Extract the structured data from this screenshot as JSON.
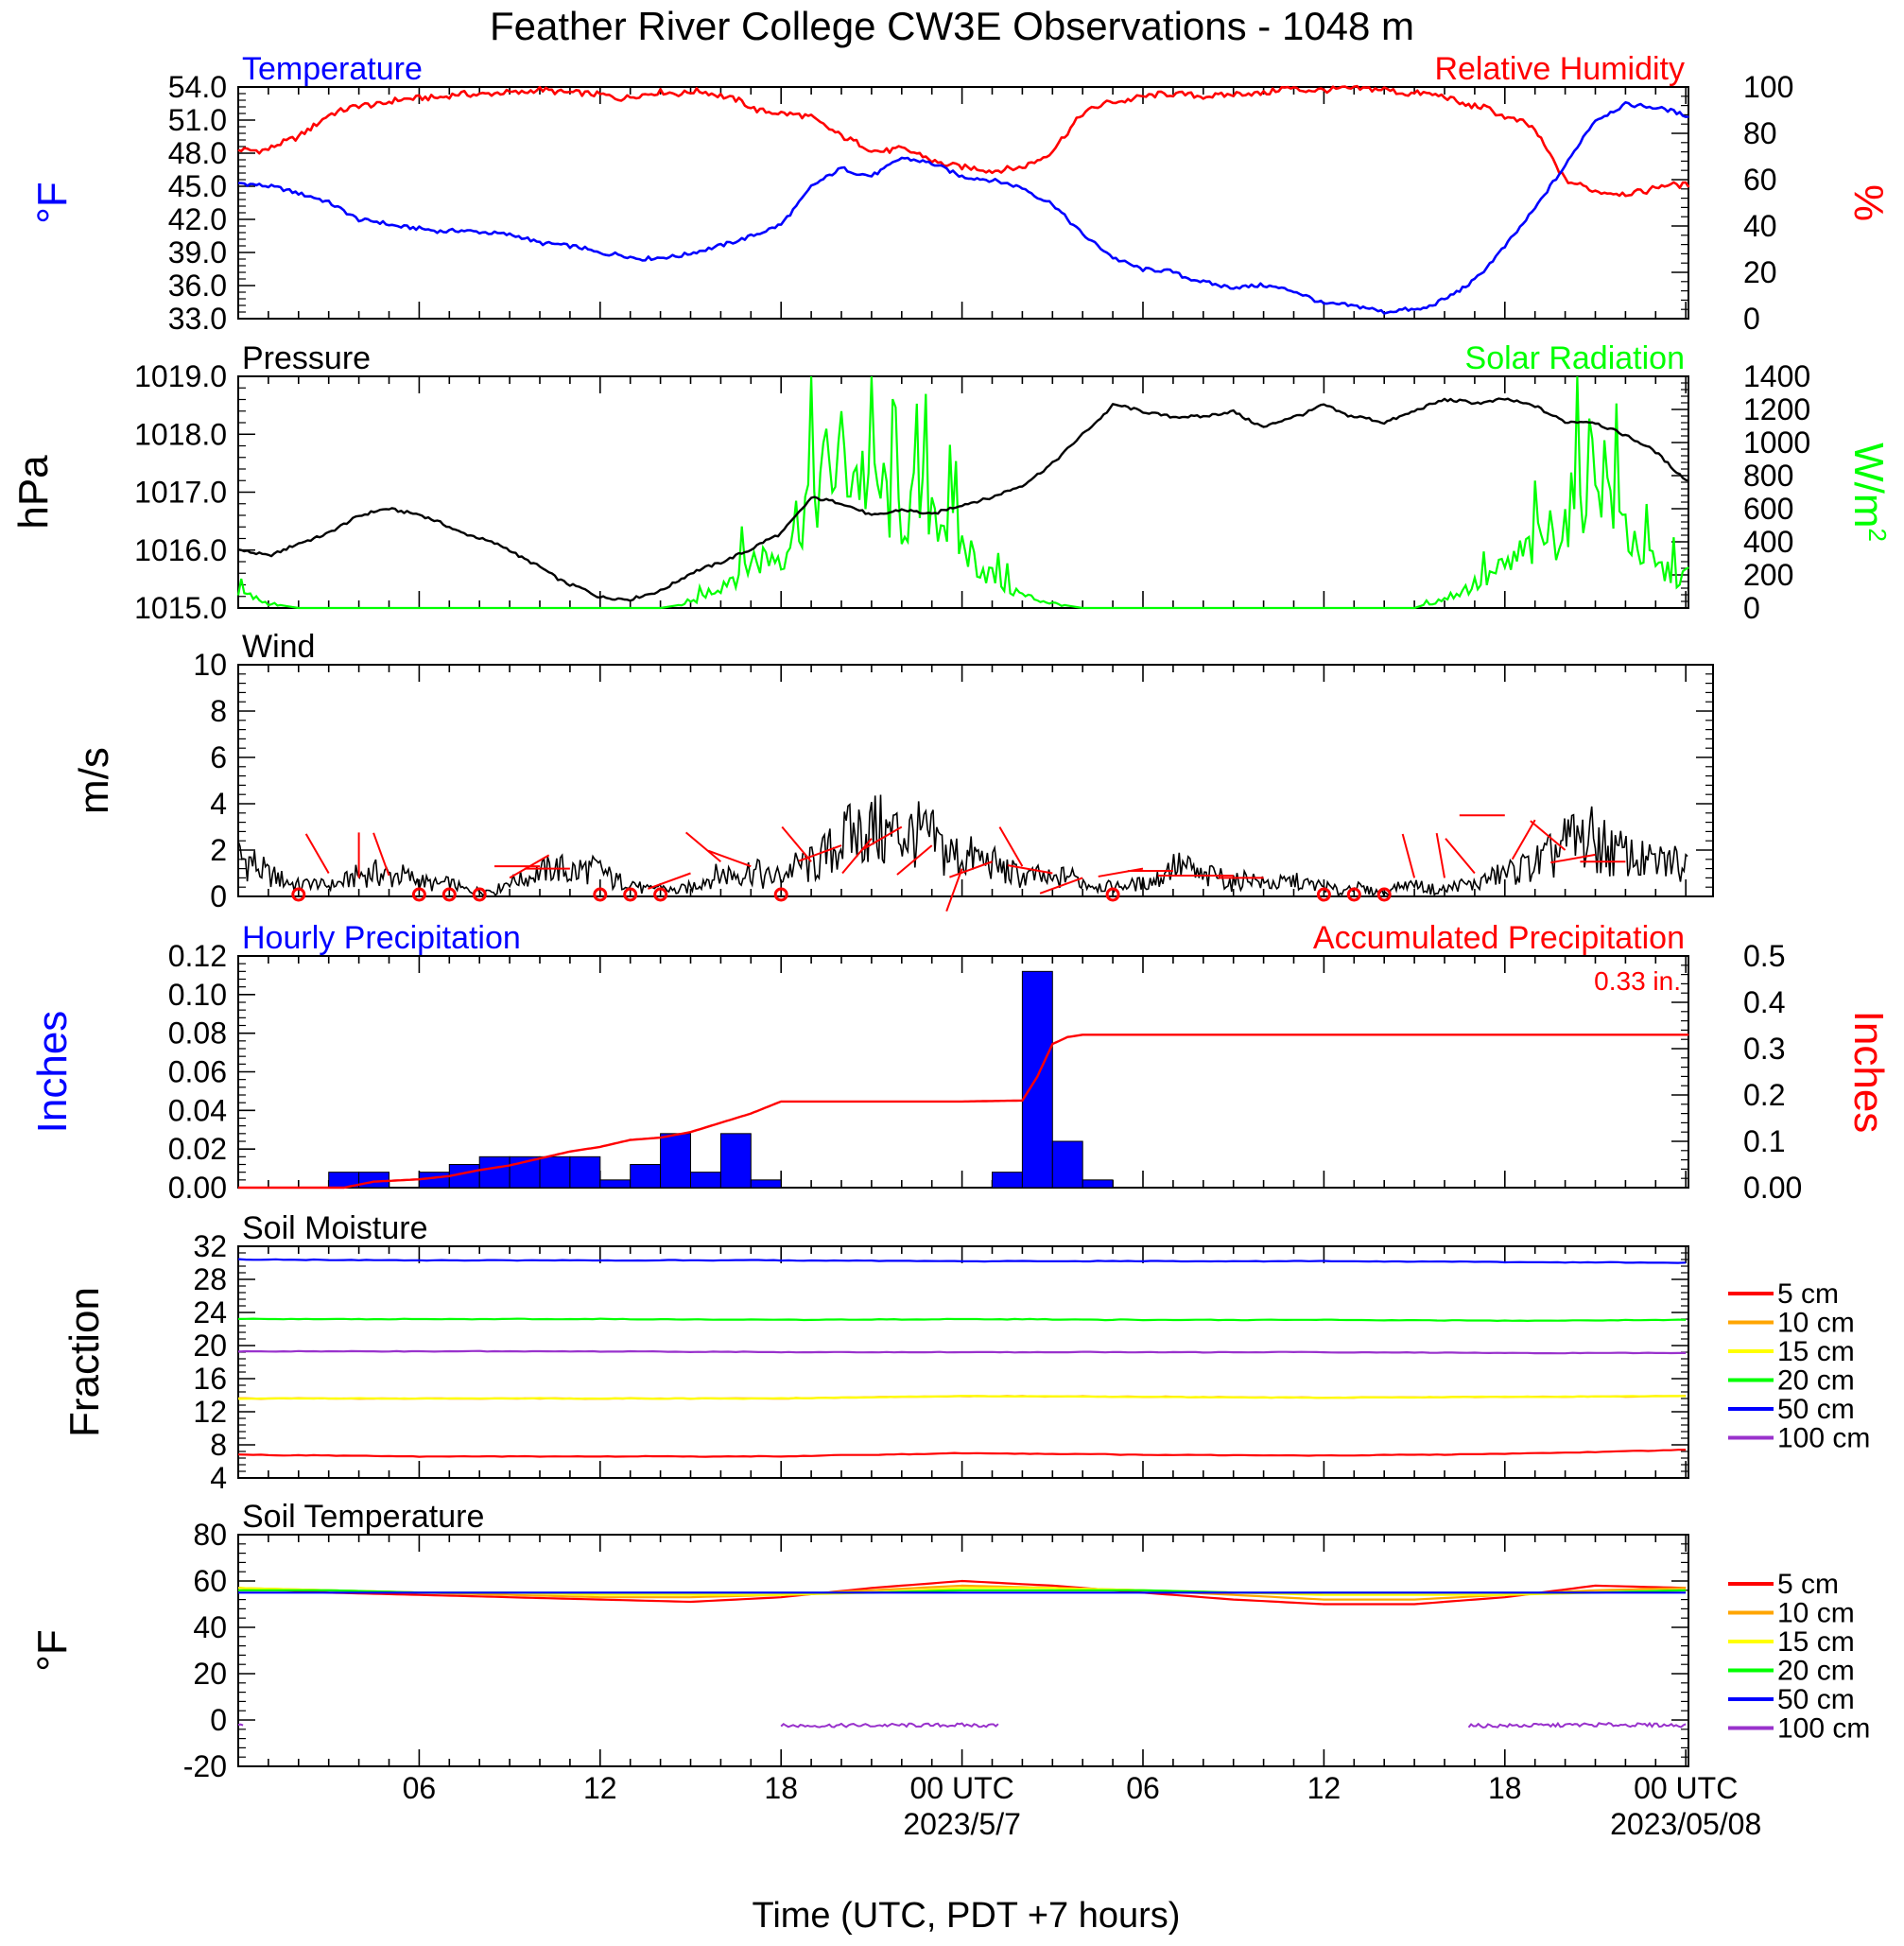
{
  "page": {
    "title": "Feather River College CW3E Observations - 1048 m",
    "x_axis": {
      "ticks": [
        "06",
        "12",
        "18",
        "00 UTC",
        "06",
        "12",
        "18",
        "00 UTC"
      ],
      "dates": [
        "2023/5/7",
        "2023/05/08"
      ],
      "label": "Time (UTC, PDT +7 hours)"
    }
  },
  "colors": {
    "temperature": "#0000ff",
    "humidity": "#ff0000",
    "pressure": "#000000",
    "solar": "#00ff00",
    "wind": "#000000",
    "barb": "#ff0000",
    "hourly_precip": "#0000ff",
    "accum_precip": "#ff0000"
  },
  "chart_data": [
    {
      "type": "line",
      "panel": "temperature-humidity",
      "title_left": "Temperature",
      "title_right": "Relative Humidity",
      "ylabel_left": "°F",
      "ylabel_right": "%",
      "ylim_left": [
        33,
        54
      ],
      "ylim_right": [
        0,
        100
      ],
      "yticks_left": [
        "54.0",
        "51.0",
        "48.0",
        "45.0",
        "42.0",
        "39.0",
        "36.0",
        "33.0"
      ],
      "yticks_right": [
        "100",
        "80",
        "60",
        "40",
        "20",
        "0"
      ],
      "x_hours": [
        0,
        1,
        2,
        3,
        4,
        5,
        6,
        7,
        8,
        9,
        10,
        11,
        12,
        13,
        14,
        15,
        16,
        17,
        18,
        19,
        20,
        21,
        22,
        23,
        24,
        25,
        26,
        27,
        28,
        29,
        30,
        31,
        32,
        33,
        34,
        35,
        36,
        37,
        38,
        39,
        40,
        41,
        42,
        43,
        44,
        45,
        46,
        47,
        48
      ],
      "series": [
        {
          "name": "Temperature",
          "axis": "left",
          "values": [
            45.3,
            45.0,
            44.5,
            43.5,
            42.0,
            41.5,
            41.2,
            40.9,
            40.8,
            40.5,
            40.0,
            39.5,
            39.0,
            38.6,
            38.4,
            39.0,
            39.6,
            40.5,
            41.5,
            45.0,
            46.5,
            46.0,
            47.5,
            47.0,
            46.0,
            45.5,
            44.8,
            43.5,
            40.5,
            38.5,
            37.5,
            37.3,
            36.2,
            35.9,
            36.0,
            35.5,
            34.4,
            34.0,
            33.7,
            33.8,
            34.6,
            36.5,
            39.5,
            43.0,
            47.0,
            51.0,
            52.5,
            52.0,
            51.5
          ]
        },
        {
          "name": "Relative Humidity",
          "axis": "right",
          "values": [
            73,
            73,
            78,
            88,
            92,
            94,
            95,
            96,
            97,
            98,
            98,
            97,
            96,
            96,
            97,
            98,
            97,
            91,
            89,
            87,
            79,
            73,
            73,
            68,
            66,
            63,
            65,
            73,
            88,
            94,
            96,
            96,
            96,
            97,
            98,
            99,
            99,
            99,
            99,
            97,
            95,
            92,
            88,
            81,
            60,
            55,
            54,
            57,
            58
          ]
        }
      ]
    },
    {
      "type": "line",
      "panel": "pressure-solar",
      "title_left": "Pressure",
      "title_right": "Solar Radiation",
      "ylabel_left": "hPa",
      "ylabel_right": "W/m",
      "ylabel_right_sup": "2",
      "ylim_left": [
        1015,
        1019
      ],
      "ylim_right": [
        0,
        1400
      ],
      "yticks_left": [
        "1019.0",
        "1018.0",
        "1017.0",
        "1016.0",
        "1015.0"
      ],
      "yticks_right": [
        "1400",
        "1200",
        "1000",
        "800",
        "600",
        "400",
        "200",
        "0"
      ],
      "x_hours": [
        0,
        1,
        2,
        3,
        4,
        5,
        6,
        7,
        8,
        9,
        10,
        11,
        12,
        13,
        14,
        15,
        16,
        17,
        18,
        19,
        20,
        21,
        22,
        23,
        24,
        25,
        26,
        27,
        28,
        29,
        30,
        31,
        32,
        33,
        34,
        35,
        36,
        37,
        38,
        39,
        40,
        41,
        42,
        43,
        44,
        45,
        46,
        47,
        48
      ],
      "series": [
        {
          "name": "Pressure",
          "axis": "left",
          "values": [
            1016.0,
            1015.9,
            1016.1,
            1016.3,
            1016.6,
            1016.7,
            1016.6,
            1016.4,
            1016.2,
            1016.0,
            1015.7,
            1015.4,
            1015.2,
            1015.15,
            1015.3,
            1015.6,
            1015.8,
            1016.0,
            1016.3,
            1016.9,
            1016.8,
            1016.6,
            1016.7,
            1016.6,
            1016.8,
            1016.9,
            1017.1,
            1017.5,
            1018.0,
            1018.5,
            1018.4,
            1018.3,
            1018.3,
            1018.4,
            1018.1,
            1018.3,
            1018.5,
            1018.3,
            1018.2,
            1018.4,
            1018.6,
            1018.55,
            1018.6,
            1018.5,
            1018.2,
            1018.2,
            1018.0,
            1017.7,
            1017.2
          ]
        },
        {
          "name": "Solar Radiation",
          "axis": "right",
          "values": [
            100,
            30,
            0,
            0,
            0,
            0,
            0,
            0,
            0,
            0,
            0,
            0,
            0,
            0,
            0,
            30,
            150,
            300,
            350,
            750,
            950,
            800,
            600,
            700,
            400,
            200,
            80,
            30,
            0,
            0,
            0,
            0,
            0,
            0,
            0,
            0,
            0,
            0,
            0,
            0,
            60,
            150,
            250,
            400,
            550,
            1000,
            500,
            250,
            200
          ]
        }
      ]
    },
    {
      "type": "line",
      "panel": "wind",
      "title_left": "Wind",
      "ylabel_left": "m/s",
      "ylim_left": [
        0,
        10
      ],
      "yticks_left": [
        "10",
        "8",
        "6",
        "4",
        "2",
        "0"
      ],
      "x_hours": [
        0,
        1,
        2,
        3,
        4,
        5,
        6,
        7,
        8,
        9,
        10,
        11,
        12,
        13,
        14,
        15,
        16,
        17,
        18,
        19,
        20,
        21,
        22,
        23,
        24,
        25,
        26,
        27,
        28,
        29,
        30,
        31,
        32,
        33,
        34,
        35,
        36,
        37,
        38,
        39,
        40,
        41,
        42,
        43,
        44,
        45,
        46,
        47,
        48
      ],
      "series": [
        {
          "name": "Wind",
          "axis": "left",
          "values": [
            2.0,
            1.0,
            0.6,
            0.4,
            1.0,
            1.2,
            0.7,
            0.5,
            0.3,
            0.5,
            1.0,
            1.4,
            1.1,
            0.6,
            0.3,
            0.5,
            1.1,
            1.2,
            0.9,
            1.6,
            2.5,
            3.2,
            3.0,
            2.6,
            1.9,
            1.4,
            1.0,
            0.9,
            0.8,
            0.4,
            0.6,
            1.3,
            1.0,
            0.8,
            0.6,
            0.7,
            0.5,
            0.4,
            0.3,
            0.4,
            0.5,
            0.6,
            1.0,
            1.5,
            2.5,
            2.8,
            1.8,
            1.5,
            1.6
          ]
        }
      ],
      "calm_hours": [
        2,
        6,
        7,
        8,
        12,
        13,
        14,
        18,
        29,
        36,
        37,
        38
      ],
      "barbs": [
        {
          "h": 3,
          "speed": 1.0,
          "dir": 330
        },
        {
          "h": 4,
          "speed": 0.8,
          "dir": 0
        },
        {
          "h": 5,
          "speed": 0.9,
          "dir": 340
        },
        {
          "h": 9,
          "speed": 0.8,
          "dir": 60
        },
        {
          "h": 10,
          "speed": 1.3,
          "dir": 270
        },
        {
          "h": 11,
          "speed": 1.2,
          "dir": 270
        },
        {
          "h": 15,
          "speed": 1.0,
          "dir": 250
        },
        {
          "h": 16,
          "speed": 1.5,
          "dir": 310
        },
        {
          "h": 17,
          "speed": 1.3,
          "dir": 290
        },
        {
          "h": 19,
          "speed": 1.5,
          "dir": 320
        },
        {
          "h": 20,
          "speed": 2.2,
          "dir": 250
        },
        {
          "h": 21,
          "speed": 2.5,
          "dir": 220
        },
        {
          "h": 22,
          "speed": 3.0,
          "dir": 240
        },
        {
          "h": 23,
          "speed": 2.2,
          "dir": 230
        },
        {
          "h": 24,
          "speed": 1.2,
          "dir": 200
        },
        {
          "h": 25,
          "speed": 1.5,
          "dir": 250
        },
        {
          "h": 26,
          "speed": 1.3,
          "dir": 330
        },
        {
          "h": 27,
          "speed": 1.0,
          "dir": 280
        },
        {
          "h": 28,
          "speed": 0.8,
          "dir": 250
        },
        {
          "h": 30,
          "speed": 1.2,
          "dir": 260
        },
        {
          "h": 31,
          "speed": 1.1,
          "dir": 270
        },
        {
          "h": 32,
          "speed": 0.9,
          "dir": 270
        },
        {
          "h": 33,
          "speed": 0.9,
          "dir": 270
        },
        {
          "h": 34,
          "speed": 0.8,
          "dir": 270
        },
        {
          "h": 39,
          "speed": 0.8,
          "dir": 345
        },
        {
          "h": 40,
          "speed": 0.8,
          "dir": 350
        },
        {
          "h": 41,
          "speed": 1.0,
          "dir": 320
        },
        {
          "h": 42,
          "speed": 3.5,
          "dir": 270
        },
        {
          "h": 43,
          "speed": 3.3,
          "dir": 210
        },
        {
          "h": 44,
          "speed": 2.0,
          "dir": 310
        },
        {
          "h": 45,
          "speed": 1.8,
          "dir": 260
        },
        {
          "h": 46,
          "speed": 1.5,
          "dir": 270
        }
      ]
    },
    {
      "type": "bar",
      "panel": "precipitation",
      "title_left": "Hourly Precipitation",
      "title_right": "Accumulated Precipitation",
      "annotation": "0.33 in.",
      "ylabel_left": "Inches",
      "ylabel_right": "Inches",
      "ylim_left": [
        0,
        0.12
      ],
      "ylim_right": [
        0,
        0.5
      ],
      "yticks_left": [
        "0.12",
        "0.10",
        "0.08",
        "0.06",
        "0.04",
        "0.02",
        "0.00"
      ],
      "yticks_right": [
        "0.5",
        "0.4",
        "0.3",
        "0.2",
        "0.1",
        "0.00"
      ],
      "hours": [
        0,
        1,
        2,
        3,
        4,
        5,
        6,
        7,
        8,
        9,
        10,
        11,
        12,
        13,
        14,
        15,
        16,
        17,
        18,
        19,
        20,
        21,
        22,
        23,
        24,
        25,
        26,
        27,
        28,
        29,
        30,
        31,
        32,
        33,
        34,
        35,
        36,
        37,
        38,
        39,
        40,
        41,
        42,
        43,
        44,
        45,
        46,
        47
      ],
      "hourly": [
        0,
        0,
        0,
        0.008,
        0.008,
        0,
        0.008,
        0.012,
        0.016,
        0.016,
        0.016,
        0.016,
        0.004,
        0.012,
        0.028,
        0.008,
        0.028,
        0.004,
        0,
        0,
        0,
        0,
        0,
        0,
        0,
        0.008,
        0.112,
        0.024,
        0.004,
        0,
        0,
        0,
        0,
        0,
        0,
        0,
        0,
        0,
        0,
        0,
        0,
        0,
        0,
        0,
        0,
        0,
        0,
        0
      ],
      "accum_x": [
        0,
        3.5,
        4.5,
        6,
        7,
        8,
        9,
        10,
        11,
        12,
        13,
        14,
        15,
        16,
        17,
        18,
        20,
        22,
        24,
        26,
        26.5,
        27,
        27.5,
        28,
        29,
        32,
        36,
        40,
        44,
        48
      ],
      "accum": [
        0,
        0,
        0.013,
        0.018,
        0.025,
        0.038,
        0.048,
        0.063,
        0.078,
        0.088,
        0.103,
        0.108,
        0.12,
        0.14,
        0.16,
        0.186,
        0.186,
        0.186,
        0.186,
        0.188,
        0.24,
        0.31,
        0.325,
        0.33,
        0.33,
        0.33,
        0.33,
        0.33,
        0.33,
        0.33
      ]
    },
    {
      "type": "line",
      "panel": "soil-moisture",
      "title_left": "Soil Moisture",
      "ylabel_left": "Fraction",
      "ylim_left": [
        4,
        32
      ],
      "yticks_left": [
        "32",
        "28",
        "24",
        "20",
        "16",
        "12",
        "8",
        "4"
      ],
      "x_hours": [
        0,
        6,
        12,
        18,
        24,
        30,
        36,
        42,
        48
      ],
      "series": [
        {
          "name": "5 cm",
          "values": [
            6.8,
            6.6,
            6.6,
            6.6,
            7.0,
            6.8,
            6.7,
            6.9,
            7.4
          ]
        },
        {
          "name": "10 cm",
          "values": [
            13.6,
            13.6,
            13.6,
            13.6,
            13.9,
            13.8,
            13.7,
            13.8,
            13.9
          ]
        },
        {
          "name": "15 cm",
          "values": [
            13.6,
            13.6,
            13.6,
            13.6,
            13.9,
            13.8,
            13.7,
            13.8,
            13.9
          ]
        },
        {
          "name": "20 cm",
          "values": [
            23.2,
            23.2,
            23.2,
            23.1,
            23.2,
            23.1,
            23.1,
            23.0,
            23.1
          ]
        },
        {
          "name": "50 cm",
          "values": [
            30.4,
            30.3,
            30.3,
            30.3,
            30.2,
            30.2,
            30.2,
            30.1,
            30.0
          ]
        },
        {
          "name": "100 cm",
          "values": [
            19.3,
            19.3,
            19.3,
            19.2,
            19.2,
            19.2,
            19.2,
            19.1,
            19.1
          ]
        }
      ]
    },
    {
      "type": "line",
      "panel": "soil-temperature",
      "title_left": "Soil Temperature",
      "ylabel_left": "°F",
      "ylim_left": [
        -20,
        80
      ],
      "yticks_left": [
        "80",
        "60",
        "40",
        "20",
        "0",
        "-20"
      ],
      "x_hours": [
        0,
        3,
        6,
        9,
        12,
        15,
        18,
        21,
        24,
        27,
        30,
        33,
        36,
        39,
        42,
        45,
        48
      ],
      "series": [
        {
          "name": "5 cm",
          "values": [
            57,
            55,
            54,
            53,
            52,
            51,
            53,
            57,
            60,
            58,
            55,
            52,
            50,
            50,
            53,
            58,
            57
          ]
        },
        {
          "name": "10 cm",
          "values": [
            57,
            56,
            55,
            54,
            53,
            53,
            54,
            56,
            58,
            57,
            56,
            54,
            52,
            52,
            54,
            56,
            57
          ]
        },
        {
          "name": "15 cm",
          "values": [
            57,
            56,
            55,
            55,
            54,
            54,
            54,
            55,
            57,
            57,
            56,
            55,
            54,
            54,
            54,
            55,
            56
          ]
        },
        {
          "name": "20 cm",
          "values": [
            56,
            56,
            55,
            55,
            55,
            55,
            55,
            55,
            56,
            56,
            56,
            55,
            55,
            55,
            55,
            55,
            56
          ]
        },
        {
          "name": "50 cm",
          "values": [
            55,
            55,
            55,
            55,
            55,
            55,
            55,
            55,
            55,
            55,
            55,
            55,
            55,
            55,
            55,
            55,
            55
          ]
        },
        {
          "name": "100 cm",
          "segments": [
            [
              [
                0,
                -2.5
              ],
              [
                0.2,
                -2.5
              ]
            ],
            [
              [
                18,
                -2.5
              ],
              [
                21,
                -2.3
              ],
              [
                24,
                -2.2
              ],
              [
                25.2,
                -2.4
              ]
            ],
            [
              [
                40.8,
                -2.5
              ],
              [
                43,
                -2.4
              ],
              [
                45,
                -2.0
              ],
              [
                48,
                -2.3
              ]
            ]
          ]
        }
      ]
    }
  ],
  "legend": {
    "items": [
      "5 cm",
      "10 cm",
      "15 cm",
      "20 cm",
      "50 cm",
      "100 cm"
    ],
    "colors": [
      "#ff0000",
      "#ffa500",
      "#ffff00",
      "#00ff00",
      "#0000ff",
      "#9932cc"
    ]
  }
}
